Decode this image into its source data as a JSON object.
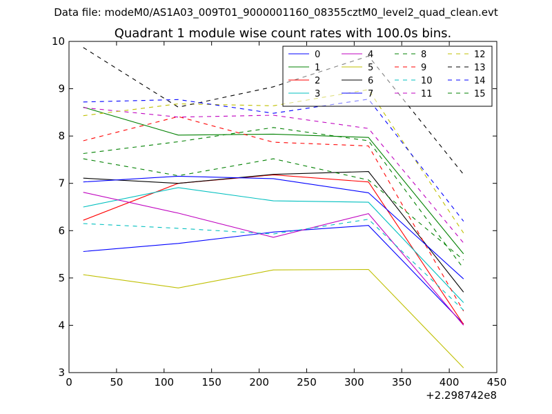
{
  "header_text": "Data file: modeM0/AS1A03_009T01_9000001160_08355cztM0_level2_quad_clean.evt",
  "chart_data": {
    "type": "line",
    "title": "Quadrant 1 module wise count rates with 100.0s bins.",
    "xlabel": "",
    "ylabel": "",
    "x_offset_label": "+2.298742e8",
    "xlim": [
      0,
      450
    ],
    "ylim": [
      3,
      10
    ],
    "xticks": [
      0,
      50,
      100,
      150,
      200,
      250,
      300,
      350,
      400,
      450
    ],
    "yticks": [
      3,
      4,
      5,
      6,
      7,
      8,
      9,
      10
    ],
    "grid": false,
    "legend_position": "upper-right",
    "legend_columns": 4,
    "x": [
      15,
      115,
      215,
      315,
      415
    ],
    "series": [
      {
        "name": "0",
        "color": "#0000ff",
        "dash": "solid",
        "values": [
          5.56,
          5.73,
          5.97,
          6.11,
          4.03
        ]
      },
      {
        "name": "1",
        "color": "#008000",
        "dash": "solid",
        "values": [
          8.61,
          8.02,
          8.04,
          7.97,
          5.51
        ]
      },
      {
        "name": "2",
        "color": "#ff0000",
        "dash": "solid",
        "values": [
          6.22,
          7.0,
          7.18,
          7.03,
          4.02
        ]
      },
      {
        "name": "3",
        "color": "#00bfbf",
        "dash": "solid",
        "values": [
          6.5,
          6.91,
          6.63,
          6.6,
          4.48
        ]
      },
      {
        "name": "4",
        "color": "#bf00bf",
        "dash": "solid",
        "values": [
          6.81,
          6.37,
          5.86,
          6.36,
          4.0
        ]
      },
      {
        "name": "5",
        "color": "#bfbf00",
        "dash": "solid",
        "values": [
          5.07,
          4.79,
          5.17,
          5.18,
          3.1
        ]
      },
      {
        "name": "6",
        "color": "#000000",
        "dash": "solid",
        "values": [
          7.11,
          7.0,
          7.19,
          7.25,
          4.7
        ]
      },
      {
        "name": "7",
        "color": "#0000ff",
        "dash": "solid",
        "values": [
          7.03,
          7.15,
          7.1,
          6.8,
          4.98
        ]
      },
      {
        "name": "8",
        "color": "#008000",
        "dash": "dashed",
        "values": [
          7.63,
          7.88,
          8.18,
          7.9,
          5.2
        ]
      },
      {
        "name": "9",
        "color": "#ff0000",
        "dash": "dashed",
        "values": [
          7.9,
          8.41,
          7.87,
          7.79,
          4.3
        ]
      },
      {
        "name": "10",
        "color": "#00bfbf",
        "dash": "dashed",
        "values": [
          6.15,
          6.05,
          5.93,
          6.24,
          4.32
        ]
      },
      {
        "name": "11",
        "color": "#bf00bf",
        "dash": "dashed",
        "values": [
          8.6,
          8.4,
          8.44,
          8.16,
          5.74
        ]
      },
      {
        "name": "12",
        "color": "#bfbf00",
        "dash": "dashed",
        "values": [
          8.43,
          8.68,
          8.64,
          8.98,
          5.95
        ]
      },
      {
        "name": "13",
        "color": "#000000",
        "dash": "dashed",
        "values": [
          9.87,
          8.61,
          9.04,
          9.69,
          7.19
        ]
      },
      {
        "name": "14",
        "color": "#0000ff",
        "dash": "dashed",
        "values": [
          8.72,
          8.77,
          8.48,
          8.78,
          6.2
        ]
      },
      {
        "name": "15",
        "color": "#008000",
        "dash": "dashed",
        "values": [
          7.52,
          7.16,
          7.52,
          7.07,
          5.38
        ]
      }
    ]
  }
}
